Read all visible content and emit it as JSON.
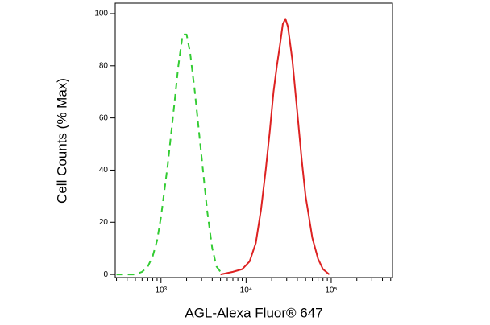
{
  "chart_data": {
    "type": "line",
    "x_label": "AGL-Alexa Fluor® 647",
    "y_label": "Cell Counts (% Max)",
    "xscale": "log",
    "xlim": [
      290,
      525000
    ],
    "ylim": [
      -1.2,
      104
    ],
    "xticks": [
      {
        "value": 1000,
        "label": "10³"
      },
      {
        "value": 10000,
        "label": "10⁴"
      },
      {
        "value": 100000,
        "label": "10⁵"
      }
    ],
    "xminorticks": [
      300,
      400,
      500,
      600,
      700,
      800,
      900,
      2000,
      3000,
      4000,
      5000,
      6000,
      7000,
      8000,
      9000,
      20000,
      30000,
      40000,
      50000,
      60000,
      70000,
      80000,
      90000,
      200000,
      300000,
      400000,
      500000
    ],
    "yticks": [
      0,
      20,
      40,
      60,
      80,
      100
    ],
    "series": [
      {
        "color": "#33cc33",
        "dash": true,
        "x": [
          300,
          500,
          600,
          700,
          800,
          900,
          1000,
          1200,
          1400,
          1600,
          1800,
          2000,
          2200,
          2500,
          3000,
          3500,
          4000,
          4500,
          5000,
          5500
        ],
        "values": [
          0,
          0,
          1,
          3,
          7,
          13,
          22,
          42,
          62,
          80,
          92,
          92,
          85,
          70,
          45,
          24,
          10,
          3,
          1,
          0
        ]
      },
      {
        "color": "#dd2222",
        "dash": false,
        "x": [
          5000,
          7000,
          9000,
          11000,
          13000,
          15000,
          17000,
          19000,
          21000,
          23000,
          25000,
          27000,
          29000,
          31000,
          35000,
          40000,
          45000,
          50000,
          60000,
          70000,
          80000,
          95000
        ],
        "values": [
          0,
          1,
          2,
          5,
          12,
          25,
          40,
          55,
          70,
          80,
          88,
          96,
          98,
          95,
          82,
          62,
          44,
          30,
          14,
          6,
          2,
          0
        ]
      }
    ]
  }
}
